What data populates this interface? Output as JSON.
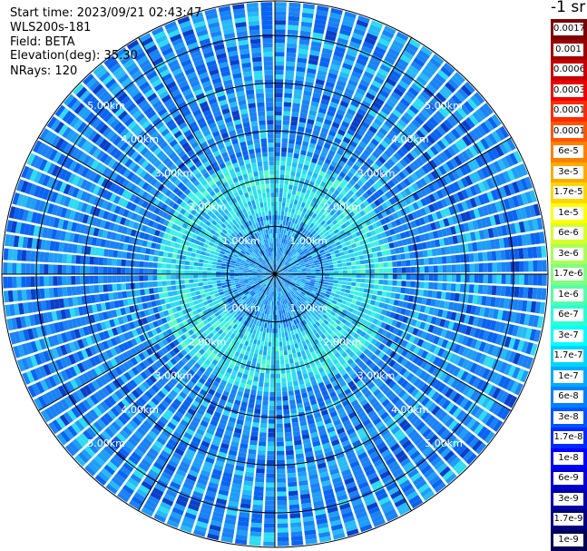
{
  "header": {
    "start_time": "Start time: 2023/09/21 02:43:47",
    "instrument": "WLS200s-181",
    "field": "Field: BETA",
    "elevation": "Elevation(deg): 35.30",
    "nrays": "NRays: 120"
  },
  "unit_label": "-1 sr",
  "range_rings": [
    "1.00km",
    "2.00km",
    "3.00km",
    "4.00km",
    "5.00km"
  ],
  "colorbar": {
    "labels": [
      "0.0017",
      "0.001",
      "0.0006",
      "0.0003",
      "0.00017",
      "0.0001",
      "6e-5",
      "3e-5",
      "1.7e-5",
      "1e-5",
      "6e-6",
      "3e-6",
      "1.7e-6",
      "1e-6",
      "6e-7",
      "3e-7",
      "1.7e-7",
      "1e-7",
      "6e-8",
      "3e-8",
      "1.7e-8",
      "1e-8",
      "6e-9",
      "3e-9",
      "1.7e-9",
      "1e-9"
    ],
    "colors": [
      "#7d0000",
      "#a00000",
      "#c80000",
      "#f00000",
      "#ff2a00",
      "#ff5500",
      "#ff8000",
      "#ffaa00",
      "#ffd500",
      "#ffff00",
      "#d5ff2a",
      "#aaff55",
      "#80ff80",
      "#55ffaa",
      "#2affd5",
      "#00ffff",
      "#00d5ff",
      "#00aaff",
      "#0080ff",
      "#0055ff",
      "#002aff",
      "#0000ff",
      "#0000d5",
      "#0000aa",
      "#000080",
      "#000055"
    ]
  },
  "scan": {
    "nrays": 120,
    "max_range_km": 5.7,
    "gates": 60
  }
}
